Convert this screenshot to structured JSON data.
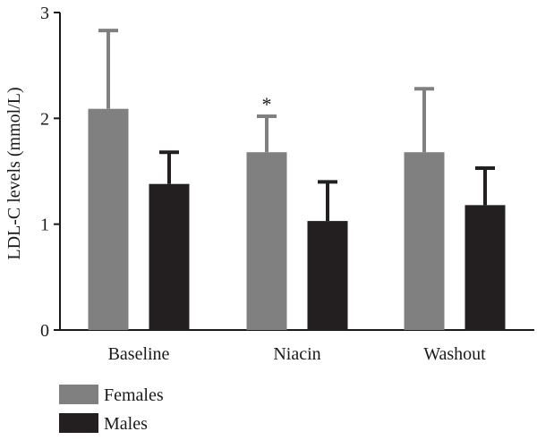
{
  "chart_data": {
    "type": "bar",
    "title": "",
    "xlabel": "",
    "ylabel": "LDL-C levels (mmol/L)",
    "ylim": [
      0,
      3
    ],
    "yticks": [
      "0",
      "1",
      "2",
      "3"
    ],
    "categories": [
      "Baseline",
      "Niacin",
      "Washout"
    ],
    "series": [
      {
        "name": "Females",
        "color": "#808080",
        "values": [
          2.09,
          1.68,
          1.68
        ],
        "error_upper": [
          0.74,
          0.34,
          0.6
        ]
      },
      {
        "name": "Males",
        "color": "#231f20",
        "values": [
          1.38,
          1.03,
          1.18
        ],
        "error_upper": [
          0.3,
          0.37,
          0.35
        ]
      }
    ],
    "annotations": [
      {
        "text": "*",
        "series": 0,
        "category": 1
      }
    ],
    "legend_position": "bottom-left",
    "grid": false
  }
}
